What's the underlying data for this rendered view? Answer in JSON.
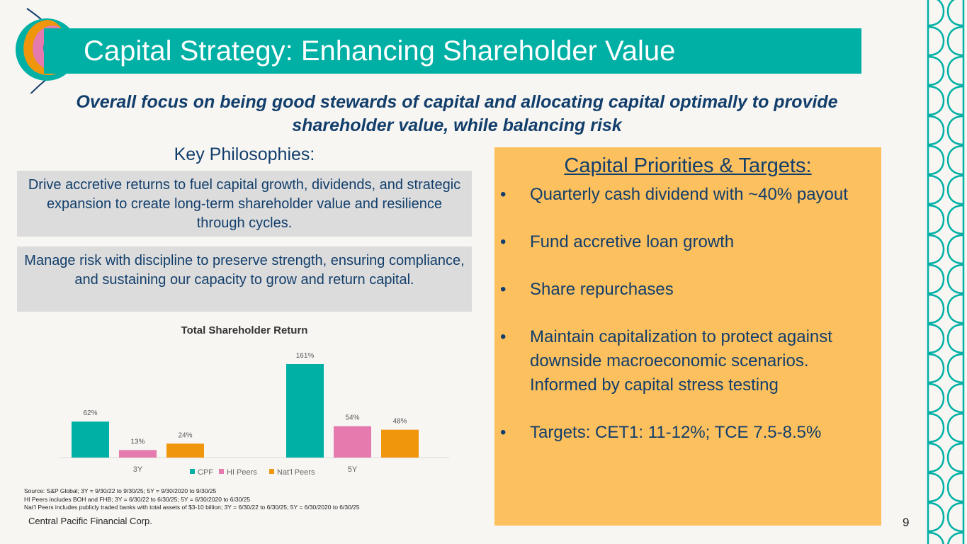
{
  "title": "Capital Strategy: Enhancing Shareholder Value",
  "subtitle": "Overall focus on being good stewards of capital and allocating capital optimally to provide shareholder value, while balancing risk",
  "key_philosophies": {
    "heading": "Key Philosophies:",
    "items": [
      "Drive accretive returns to fuel capital growth, dividends, and strategic expansion to create long-term shareholder value and resilience through cycles.",
      "Manage risk with discipline to preserve strength, ensuring compliance, and sustaining our capacity to grow and return capital."
    ]
  },
  "priorities": {
    "heading": "Capital Priorities & Targets:",
    "bullet": "•",
    "items": [
      "Quarterly cash dividend with ~40% payout",
      "Fund accretive loan growth",
      "Share repurchases",
      "Maintain capitalization to protect against downside macroeconomic scenarios. Informed by capital stress testing",
      "Targets: CET1: 11-12%; TCE 7.5-8.5%"
    ]
  },
  "chart_data": {
    "type": "bar",
    "title": "Total Shareholder Return",
    "categories": [
      "3Y",
      "5Y"
    ],
    "series": [
      {
        "name": "CPF",
        "values": [
          62,
          161
        ],
        "labels": [
          "62%",
          "161%"
        ],
        "color": "#00b0a5"
      },
      {
        "name": "HI Peers",
        "values": [
          13,
          54
        ],
        "labels": [
          "13%",
          "54%"
        ],
        "color": "#e47aae"
      },
      {
        "name": "Nat'l Peers",
        "values": [
          24,
          48
        ],
        "labels": [
          "24%",
          "48%"
        ],
        "color": "#f0960d"
      }
    ],
    "ylim": [
      0,
      170
    ],
    "legend": "bottom",
    "grid": false
  },
  "source_notes": [
    "Source: S&P Global; 3Y = 9/30/22 to 9/30/25; 5Y = 9/30/2020 to 9/30/25",
    "HI Peers includes BOH and FHB; 3Y = 6/30/22 to 6/30/25; 5Y = 6/30/2020 to 6/30/25",
    "Nat’l Peers includes publicly traded banks with total assets of $3-10 billion; 3Y = 6/30/22 to 6/30/25; 5Y = 6/30/2020 to 6/30/25"
  ],
  "footer": "Central Pacific Financial Corp.",
  "page_number": "9",
  "colors": {
    "teal": "#00b0a5",
    "navy": "#123e6b",
    "orange_panel": "#fdc05e",
    "gray_box": "#dcdcdc"
  }
}
